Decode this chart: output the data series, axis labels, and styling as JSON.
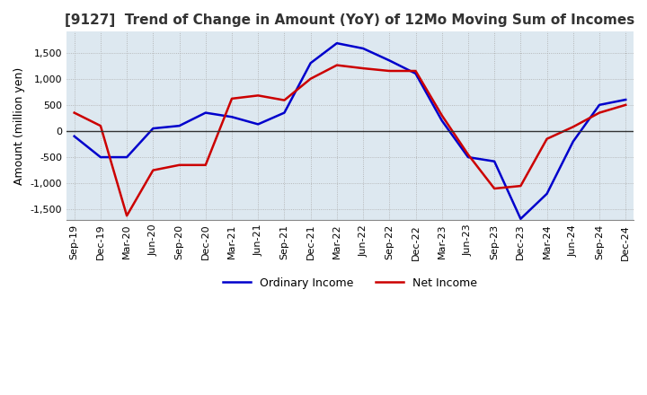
{
  "title": "[9127]  Trend of Change in Amount (YoY) of 12Mo Moving Sum of Incomes",
  "ylabel": "Amount (million yen)",
  "ylim": [
    -1700,
    1900
  ],
  "yticks": [
    -1500,
    -1000,
    -500,
    0,
    500,
    1000,
    1500
  ],
  "x_labels": [
    "Sep-19",
    "Dec-19",
    "Mar-20",
    "Jun-20",
    "Sep-20",
    "Dec-20",
    "Mar-21",
    "Jun-21",
    "Sep-21",
    "Dec-21",
    "Mar-22",
    "Jun-22",
    "Sep-22",
    "Dec-22",
    "Mar-23",
    "Jun-23",
    "Sep-23",
    "Dec-23",
    "Mar-24",
    "Jun-24",
    "Sep-24",
    "Dec-24"
  ],
  "ordinary_income": [
    -100,
    -500,
    -500,
    50,
    100,
    350,
    270,
    130,
    350,
    1300,
    1680,
    1580,
    1350,
    1100,
    200,
    -500,
    -580,
    -1680,
    -1200,
    -200,
    500,
    600
  ],
  "net_income": [
    350,
    100,
    -1620,
    -750,
    -650,
    -650,
    620,
    680,
    590,
    1000,
    1260,
    1200,
    1150,
    1150,
    300,
    -450,
    -1100,
    -1050,
    -150,
    80,
    350,
    500
  ],
  "ordinary_color": "#0000cc",
  "net_color": "#cc0000",
  "grid_color": "#aaaaaa",
  "grid_color_major": "#888888",
  "bg_color": "#dde8f0",
  "title_color": "#333333",
  "legend_labels": [
    "Ordinary Income",
    "Net Income"
  ]
}
